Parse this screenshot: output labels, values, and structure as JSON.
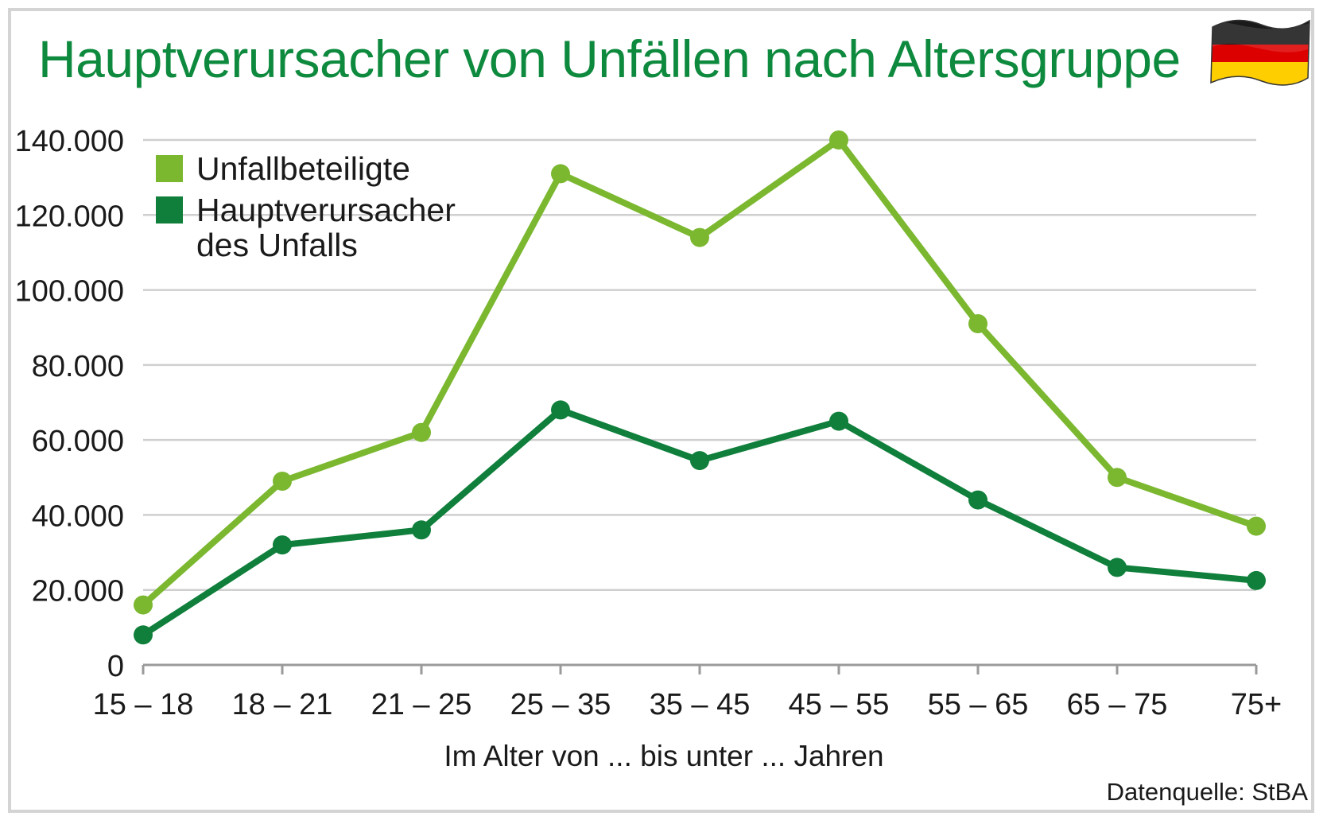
{
  "title": "Hauptverursacher von Unfällen nach Altersgruppe",
  "source": "Datenquelle: StBA",
  "flag_icon": "germany-flag-icon",
  "colors": {
    "title": "#0e8a3e",
    "series_light": "#7bb830",
    "series_dark": "#0f7f3b",
    "grid": "#cfcfcf",
    "flag_black": "#1a1a1a",
    "flag_red": "#dd0000",
    "flag_gold": "#ffce00"
  },
  "legend": [
    {
      "label": "Unfallbeteiligte"
    },
    {
      "label": "Hauptverursacher\ndes Unfalls"
    }
  ],
  "chart_data": {
    "type": "line",
    "title": "Hauptverursacher von Unfällen nach Altersgruppe",
    "xlabel": "Im Alter von ... bis unter ... Jahren",
    "ylabel": "",
    "categories": [
      "15 – 18",
      "18 – 21",
      "21 – 25",
      "25 – 35",
      "35 – 45",
      "45 – 55",
      "55 – 65",
      "65 – 75",
      "75+"
    ],
    "ylim": [
      0,
      140000
    ],
    "yticks": [
      0,
      20000,
      40000,
      60000,
      80000,
      100000,
      120000,
      140000
    ],
    "ytick_labels": [
      "0",
      "20.000",
      "40.000",
      "60.000",
      "80.000",
      "100.000",
      "120.000",
      "140.000"
    ],
    "grid": true,
    "legend_position": "top-left",
    "series": [
      {
        "name": "Unfallbeteiligte",
        "values": [
          16000,
          49000,
          62000,
          131000,
          114000,
          140000,
          91000,
          50000,
          37000
        ]
      },
      {
        "name": "Hauptverursacher des Unfalls",
        "values": [
          8000,
          32000,
          36000,
          68000,
          54500,
          65000,
          44000,
          26000,
          22500
        ]
      }
    ]
  }
}
